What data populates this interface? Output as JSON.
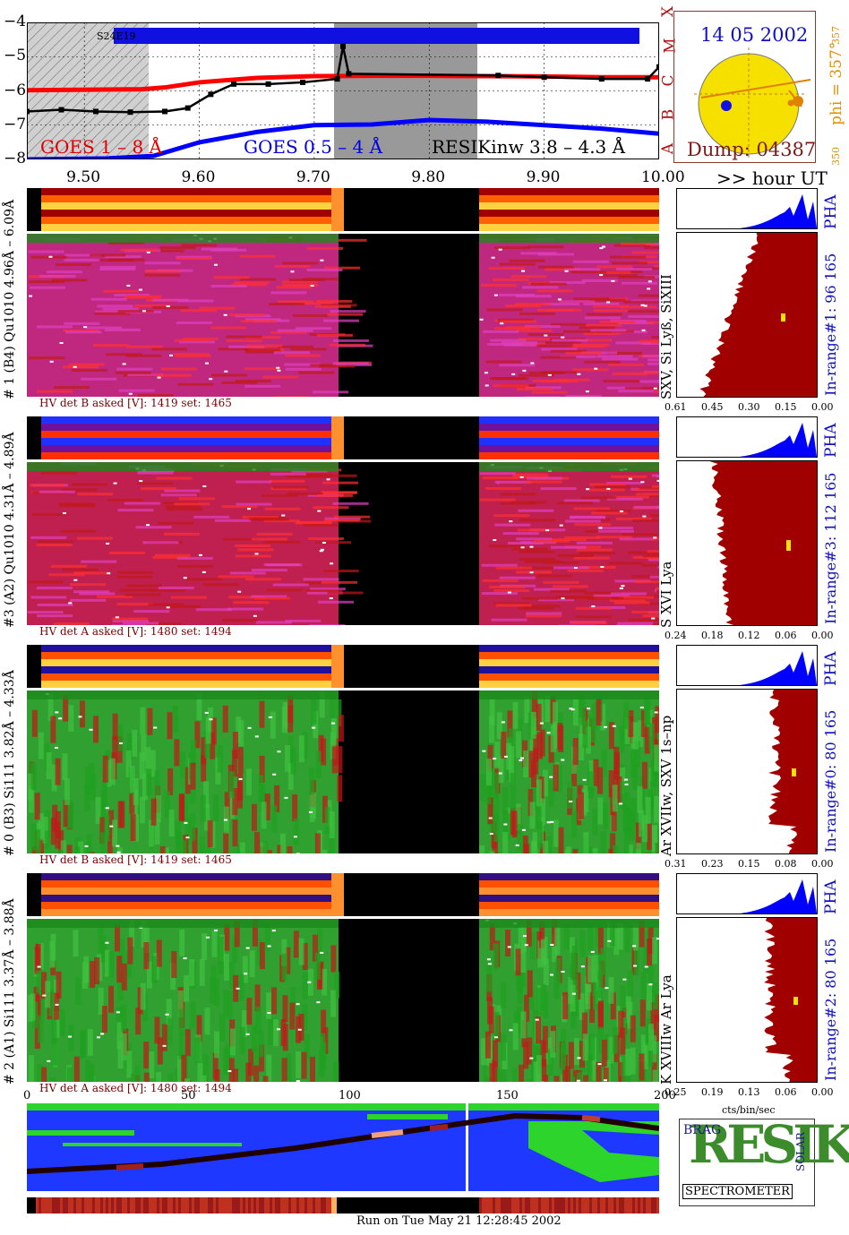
{
  "chart_data": {
    "type": "line",
    "title": "RESIKinw 3.8 – 4.3 Å",
    "x_axis": {
      "ticks": [
        "9.50",
        "9.60",
        "9.70",
        "9.80",
        "9.90",
        "10.00"
      ],
      "label": ">> hour UT",
      "range": [
        9.45,
        10.0
      ]
    },
    "y_axis": {
      "ticks": [
        "−4",
        "−5",
        "−6",
        "−7",
        "−8"
      ],
      "range": [
        -8,
        -4
      ]
    },
    "goes_classes": [
      "A",
      "B",
      "C",
      "M",
      "X"
    ],
    "band_label": "S24E19",
    "series": [
      {
        "name": "GOES 1 – 8 Å",
        "color": "#ff0000",
        "x": [
          9.45,
          9.55,
          9.57,
          9.6,
          9.65,
          9.7,
          9.75,
          9.8,
          9.85,
          9.9,
          9.95,
          10.0
        ],
        "y": [
          -5.98,
          -5.95,
          -5.9,
          -5.75,
          -5.62,
          -5.57,
          -5.56,
          -5.56,
          -5.57,
          -5.58,
          -5.6,
          -5.6
        ]
      },
      {
        "name": "GOES 0.5 – 4 Å",
        "color": "#0000ff",
        "x": [
          9.45,
          9.52,
          9.56,
          9.6,
          9.65,
          9.7,
          9.75,
          9.8,
          9.85,
          9.9,
          9.95,
          10.0
        ],
        "y": [
          -8.0,
          -7.97,
          -7.9,
          -7.5,
          -7.2,
          -7.0,
          -6.98,
          -6.85,
          -6.9,
          -7.0,
          -7.1,
          -7.25
        ]
      },
      {
        "name": "RESIKinw 3.8 – 4.3 Å",
        "color": "#000000",
        "x": [
          9.45,
          9.48,
          9.51,
          9.54,
          9.57,
          9.59,
          9.61,
          9.63,
          9.66,
          9.69,
          9.72,
          9.725,
          9.73,
          9.86,
          9.9,
          9.95,
          9.99,
          10.0
        ],
        "y": [
          -6.6,
          -6.55,
          -6.6,
          -6.62,
          -6.6,
          -6.5,
          -6.1,
          -5.8,
          -5.8,
          -5.75,
          -5.65,
          -4.7,
          -5.5,
          -5.55,
          -5.6,
          -5.65,
          -5.65,
          -5.3
        ]
      }
    ]
  },
  "sun": {
    "date": "14 05 2002",
    "phi": "phi = 357°",
    "phi_small_top": "357",
    "phi_small_bottom": "350",
    "dump": "Dump: 04387"
  },
  "panels": [
    {
      "side_label": "# 1 (B4) Qu1010 4.96Å – 6.09Å",
      "line_label": "SXV, Si Lyß, SiXIII",
      "range_label": "In-range#1:  96 165",
      "hv_text": "HV det B asked [V]:  1419  set:  1465",
      "pha": "PHA",
      "xticks": [
        "0.61",
        "0.45",
        "0.30",
        "0.15",
        "0.00"
      ]
    },
    {
      "side_label": "#3 (A2) Qu1010  4.31Å – 4.89Å",
      "line_label": "S XVI Lya",
      "range_label": "In-range#3:  112 165",
      "hv_text": "HV det A asked [V]:  1480  set:  1494",
      "pha": "PHA",
      "xticks": [
        "0.24",
        "0.18",
        "0.12",
        "0.06",
        "0.00"
      ]
    },
    {
      "side_label": "# 0 (B3) Si111  3.82Å – 4.33Å",
      "line_label": "Ar XVIIw,  SXV 1s–np",
      "range_label": "In-range#0:  80 165",
      "hv_text": "HV det B asked [V]:  1419  set:  1465",
      "pha": "PHA",
      "xticks": [
        "0.31",
        "0.23",
        "0.15",
        "0.08",
        "0.00"
      ]
    },
    {
      "side_label": "# 2 (A1) Si111  3.37Å – 3.88Å",
      "line_label": "K XVIIIw  Ar Lya",
      "range_label": "In-range#2:  80 165",
      "hv_text": "HV det A asked [V]:  1480  set:  1494",
      "pha": "PHA",
      "xticks": [
        "0.25",
        "0.19",
        "0.13",
        "0.06",
        "0.00"
      ]
    }
  ],
  "bottom_axis": {
    "ticks": [
      "0",
      "50",
      "100",
      "150",
      "200"
    ],
    "unit": "cts/bin/sec"
  },
  "logo": {
    "word": "RESIK",
    "small1": "BRAG",
    "small2": "SOLAR",
    "caption": "SPECTROMETER"
  },
  "footer": "Run on Tue May 21 12:28:45 2002",
  "colors": {
    "goes_long": "#ff0000",
    "goes_short": "#0000ff",
    "hist": "#a00000",
    "pha": "#0000ff",
    "sun": "#f5e000"
  }
}
